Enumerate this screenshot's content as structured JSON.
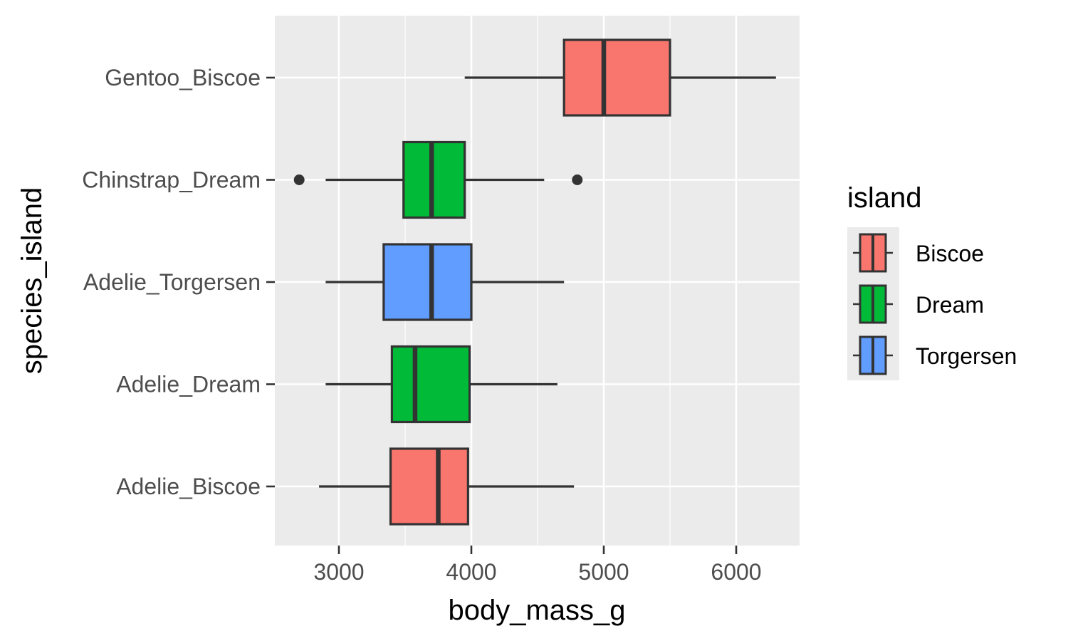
{
  "chart_data": {
    "type": "boxplot",
    "orientation": "horizontal",
    "xlabel": "body_mass_g",
    "ylabel": "species_island",
    "xlim": [
      2500,
      6500
    ],
    "xticks": [
      3000,
      4000,
      5000,
      6000
    ],
    "xtick_labels": [
      "3000",
      "4000",
      "5000",
      "6000"
    ],
    "grid": true,
    "categories": [
      "Adelie_Biscoe",
      "Adelie_Dream",
      "Adelie_Torgersen",
      "Chinstrap_Dream",
      "Gentoo_Biscoe"
    ],
    "boxes": [
      {
        "category": "Adelie_Biscoe",
        "island": "Biscoe",
        "whisker_low": 2850,
        "q1": 3390,
        "median": 3750,
        "q3": 3975,
        "whisker_high": 4775,
        "outliers": []
      },
      {
        "category": "Adelie_Dream",
        "island": "Dream",
        "whisker_low": 2900,
        "q1": 3400,
        "median": 3575,
        "q3": 3987,
        "whisker_high": 4650,
        "outliers": []
      },
      {
        "category": "Adelie_Torgersen",
        "island": "Torgersen",
        "whisker_low": 2900,
        "q1": 3338,
        "median": 3700,
        "q3": 4000,
        "whisker_high": 4700,
        "outliers": []
      },
      {
        "category": "Chinstrap_Dream",
        "island": "Dream",
        "whisker_low": 2900,
        "q1": 3488,
        "median": 3700,
        "q3": 3950,
        "whisker_high": 4550,
        "outliers": [
          2700,
          4800
        ]
      },
      {
        "category": "Gentoo_Biscoe",
        "island": "Biscoe",
        "whisker_low": 3950,
        "q1": 4700,
        "median": 5000,
        "q3": 5500,
        "whisker_high": 6300,
        "outliers": []
      }
    ],
    "legend": {
      "title": "island",
      "placement": "right",
      "items": [
        {
          "label": "Biscoe",
          "color": "#F8766D"
        },
        {
          "label": "Dream",
          "color": "#00BA38"
        },
        {
          "label": "Torgersen",
          "color": "#619CFF"
        }
      ]
    },
    "colors": {
      "panel_background": "#EBEBEB",
      "gridline": "#FFFFFF",
      "box_outline": "#333333",
      "tick_text": "#4D4D4D"
    }
  }
}
